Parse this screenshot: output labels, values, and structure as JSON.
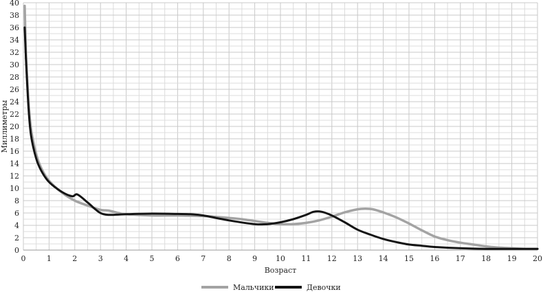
{
  "chart_data": {
    "type": "line",
    "title": "",
    "xlabel": "Возраст",
    "ylabel": "Миллиметры",
    "xlim": [
      0,
      20
    ],
    "ylim": [
      0,
      40
    ],
    "xticks": [
      "0",
      "1",
      "2",
      "3",
      "4",
      "5",
      "6",
      "7",
      "8",
      "9",
      "10",
      "11",
      "12",
      "13",
      "14",
      "15",
      "16",
      "17",
      "18",
      "19",
      "20"
    ],
    "yticks": [
      "0",
      "2",
      "4",
      "6",
      "8",
      "10",
      "12",
      "14",
      "16",
      "18",
      "20",
      "22",
      "24",
      "26",
      "28",
      "30",
      "32",
      "34",
      "36",
      "38",
      "40"
    ],
    "grid": true,
    "legend_position": "bottom",
    "series": [
      {
        "name": "Мальчики",
        "color": "#a3a3a3",
        "x": [
          0.05,
          0.1,
          0.2,
          0.3,
          0.5,
          0.7,
          1.0,
          1.5,
          2.0,
          2.5,
          3.0,
          3.3,
          3.7,
          4.0,
          5.0,
          6.0,
          7.0,
          8.0,
          8.5,
          9.0,
          9.5,
          10.0,
          10.5,
          11.0,
          11.5,
          12.0,
          12.5,
          13.0,
          13.3,
          13.6,
          14.0,
          14.5,
          15.0,
          15.5,
          16.0,
          16.5,
          17.0,
          17.5,
          18.0,
          18.5,
          19.0,
          19.5,
          20.0
        ],
        "values": [
          39.5,
          32,
          24,
          19.5,
          15.5,
          13.2,
          11.2,
          9.3,
          8.0,
          7.2,
          6.5,
          6.4,
          6.0,
          5.8,
          5.6,
          5.6,
          5.5,
          5.2,
          5.0,
          4.7,
          4.4,
          4.2,
          4.2,
          4.4,
          4.8,
          5.4,
          6.1,
          6.6,
          6.7,
          6.6,
          6.1,
          5.3,
          4.3,
          3.2,
          2.2,
          1.6,
          1.2,
          0.9,
          0.6,
          0.4,
          0.3,
          0.2,
          0.2
        ]
      },
      {
        "name": "Девочки",
        "color": "#141414",
        "x": [
          0.05,
          0.1,
          0.2,
          0.3,
          0.5,
          0.7,
          1.0,
          1.5,
          1.9,
          2.1,
          2.5,
          2.8,
          3.0,
          3.3,
          4.0,
          5.0,
          6.0,
          6.5,
          7.0,
          8.0,
          9.0,
          9.5,
          10.0,
          10.5,
          11.0,
          11.3,
          11.6,
          12.0,
          12.5,
          13.0,
          13.5,
          14.0,
          14.5,
          15.0,
          15.5,
          16.0,
          17.0,
          18.0,
          19.0,
          20.0
        ],
        "values": [
          36,
          31,
          23,
          18.5,
          14.8,
          12.8,
          11.0,
          9.4,
          8.7,
          9.0,
          7.7,
          6.6,
          6.0,
          5.7,
          5.8,
          5.9,
          5.85,
          5.8,
          5.6,
          4.8,
          4.2,
          4.2,
          4.5,
          5.0,
          5.7,
          6.2,
          6.2,
          5.6,
          4.5,
          3.3,
          2.5,
          1.8,
          1.3,
          0.9,
          0.7,
          0.5,
          0.3,
          0.2,
          0.2,
          0.2
        ]
      }
    ]
  }
}
